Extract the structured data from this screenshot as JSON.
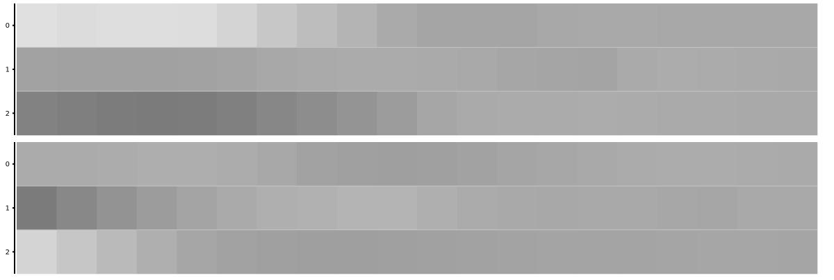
{
  "chart_data": [
    {
      "type": "heatmap",
      "title": "",
      "xlabel": "",
      "ylabel": "",
      "rows": [
        "0",
        "1",
        "2"
      ],
      "columns": 20,
      "colormap": "grayscale",
      "cell_border_color": "#c8c8c8",
      "axis_color": "#000000",
      "values": [
        [
          224,
          220,
          222,
          222,
          221,
          212,
          199,
          189,
          180,
          170,
          165,
          165,
          165,
          168,
          169,
          169,
          168,
          168,
          168,
          168
        ],
        [
          162,
          161,
          161,
          161,
          162,
          164,
          168,
          170,
          171,
          171,
          170,
          169,
          166,
          165,
          164,
          170,
          172,
          171,
          170,
          169
        ],
        [
          130,
          127,
          124,
          123,
          124,
          128,
          135,
          141,
          148,
          156,
          166,
          170,
          171,
          171,
          172,
          171,
          170,
          170,
          169,
          169
        ]
      ]
    },
    {
      "type": "heatmap",
      "title": "",
      "xlabel": "",
      "ylabel": "",
      "rows": [
        "0",
        "1",
        "2"
      ],
      "columns": 20,
      "colormap": "grayscale",
      "cell_border_color": "#c8c8c8",
      "axis_color": "#000000",
      "values": [
        [
          171,
          171,
          172,
          174,
          174,
          172,
          168,
          162,
          160,
          159,
          160,
          162,
          165,
          167,
          169,
          171,
          172,
          172,
          171,
          170
        ],
        [
          123,
          136,
          147,
          156,
          164,
          170,
          175,
          177,
          180,
          180,
          175,
          171,
          169,
          168,
          169,
          169,
          167,
          166,
          169,
          169
        ],
        [
          212,
          198,
          186,
          175,
          166,
          162,
          160,
          159,
          159,
          160,
          161,
          162,
          163,
          164,
          164,
          164,
          165,
          166,
          166,
          165
        ]
      ]
    }
  ]
}
